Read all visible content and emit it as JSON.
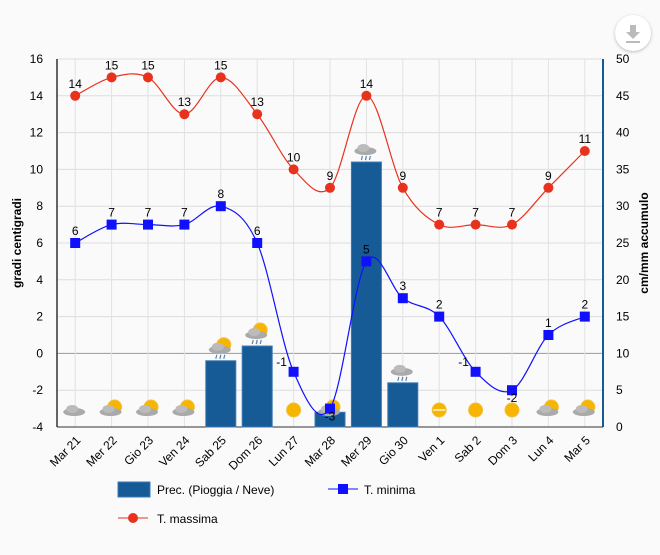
{
  "chart_data": {
    "type": "bar+line",
    "categories": [
      "Mar 21",
      "Mer 22",
      "Gio 23",
      "Ven 24",
      "Sab 25",
      "Dom 26",
      "Lun 27",
      "Mar 28",
      "Mer 29",
      "Gio 30",
      "Ven 1",
      "Sab 2",
      "Dom 3",
      "Lun 4",
      "Mar 5"
    ],
    "ylabel_left": "gradi centigradi",
    "ylabel_right": "cm/mm accumulo",
    "ylim_left": [
      -4,
      16
    ],
    "yticks_left": [
      -4,
      -2,
      0,
      2,
      4,
      6,
      8,
      10,
      12,
      14,
      16
    ],
    "ylim_right": [
      0,
      50
    ],
    "yticks_right": [
      0,
      5,
      10,
      15,
      20,
      25,
      30,
      35,
      40,
      45,
      50
    ],
    "grid": true,
    "series": [
      {
        "name": "Prec. (Pioggia / Neve)",
        "type": "bar",
        "axis": "right",
        "color": "#165a96",
        "values": [
          0,
          0,
          0,
          0,
          9,
          11,
          0,
          2,
          36,
          6,
          0,
          0,
          0,
          0,
          0
        ]
      },
      {
        "name": "T. minima",
        "type": "line",
        "axis": "left",
        "color": "#1010ff",
        "marker": "square",
        "values": [
          6,
          7,
          7,
          7,
          8,
          6,
          -1,
          -3,
          5,
          3,
          2,
          -1,
          -2,
          1,
          2
        ]
      },
      {
        "name": "T. massima",
        "type": "line",
        "axis": "left",
        "color": "#e8321e",
        "marker": "circle",
        "values": [
          14,
          15,
          15,
          13,
          15,
          13,
          10,
          9,
          14,
          9,
          7,
          7,
          7,
          9,
          11
        ]
      }
    ],
    "weather_icons": [
      "cloudy",
      "sun-cloud",
      "sun-cloud",
      "cloud-sun",
      "sun-cloud-rain",
      "sun-cloud-rain",
      "sun",
      "sun-cloud",
      "cloud-rain",
      "cloud-rain",
      "sun-haze",
      "sun",
      "sun",
      "sun-cloud",
      "sun-cloud"
    ],
    "legend": {
      "placement": "bottom"
    }
  },
  "toolbar": {
    "download_icon": "download-icon"
  }
}
